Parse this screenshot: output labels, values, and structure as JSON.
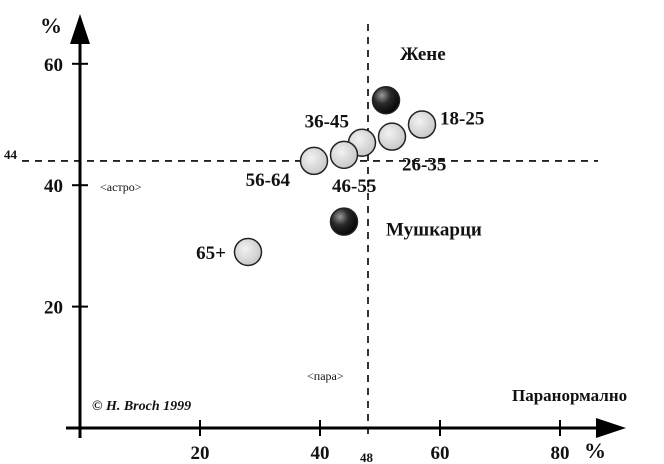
{
  "chart_data": {
    "type": "scatter",
    "x_unit": "%",
    "y_unit": "%",
    "xlabel": "Паранормално",
    "xlim": [
      0,
      82
    ],
    "ylim": [
      0,
      66
    ],
    "x_ticks": [
      20,
      40,
      60,
      80
    ],
    "y_ticks": [
      20,
      40,
      60
    ],
    "x_tick_labels": [
      "20",
      "40",
      "60",
      "80"
    ],
    "y_tick_labels": [
      "20",
      "40",
      "60"
    ],
    "reference_lines": {
      "x": {
        "value": 48,
        "label": "48"
      },
      "y": {
        "value": 44,
        "label": "44"
      }
    },
    "annotations": {
      "astro": "<астро>",
      "para": "<пара>"
    },
    "credit": "© H. Broch 1999",
    "series": [
      {
        "group": "gender",
        "color": "#1a1a1a",
        "points": [
          {
            "label": "Жене",
            "x": 51,
            "y": 54
          },
          {
            "label": "Мушкарци",
            "x": 44,
            "y": 34
          }
        ]
      },
      {
        "group": "age",
        "color": "#d6d6d6",
        "points": [
          {
            "label": "18-25",
            "x": 57,
            "y": 50
          },
          {
            "label": "26-35",
            "x": 52,
            "y": 48
          },
          {
            "label": "36-45",
            "x": 47,
            "y": 47
          },
          {
            "label": "46-55",
            "x": 44,
            "y": 45
          },
          {
            "label": "56-64",
            "x": 39,
            "y": 44
          },
          {
            "label": "65+",
            "x": 28,
            "y": 29
          }
        ]
      }
    ]
  }
}
